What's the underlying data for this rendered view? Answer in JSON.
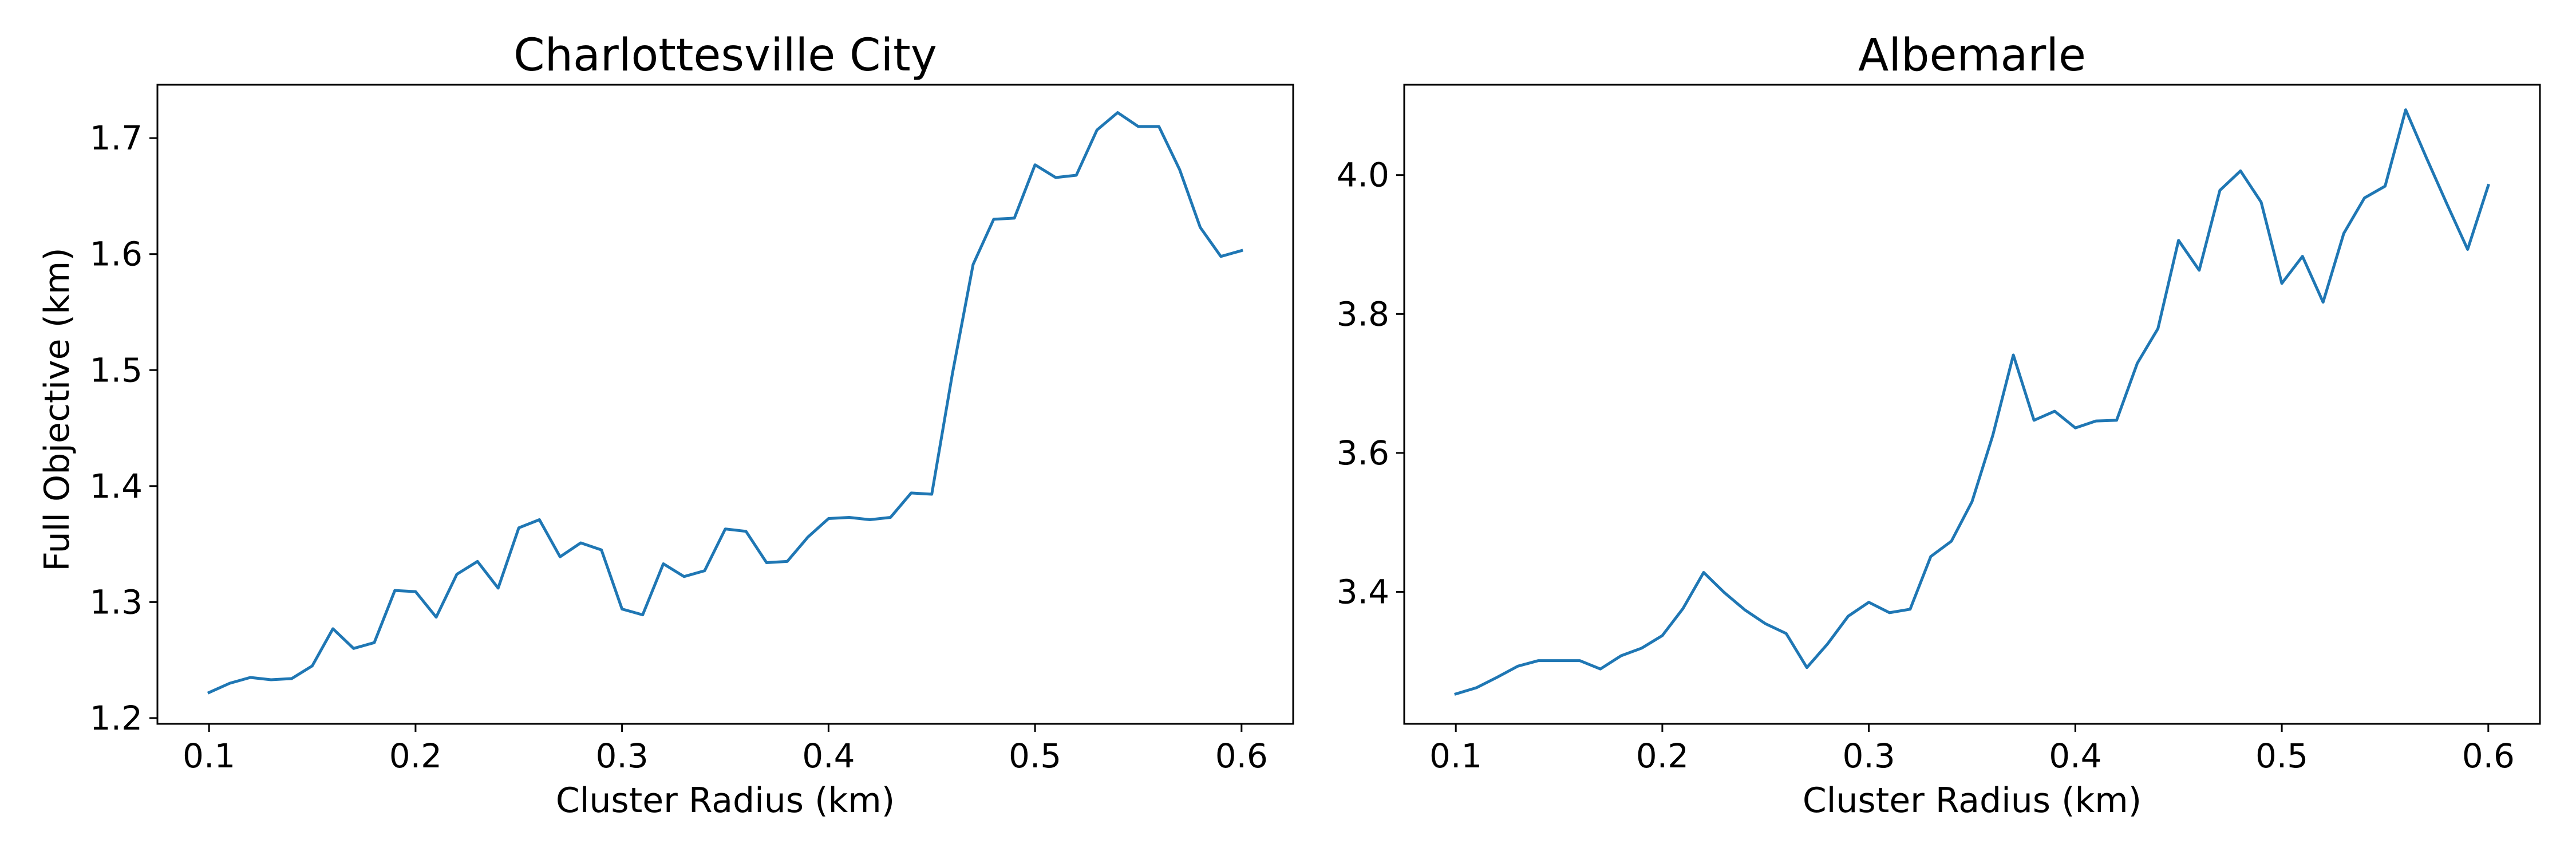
{
  "colors": {
    "line": "#1f77b4",
    "axis": "#000000",
    "background": "#ffffff"
  },
  "chart_data": [
    {
      "type": "line",
      "title": "Charlottesville City",
      "xlabel": "Cluster Radius (km)",
      "ylabel": "Full Objective (km)",
      "xlim": [
        0.075,
        0.625
      ],
      "ylim": [
        1.195,
        1.746
      ],
      "xticks": [
        0.1,
        0.2,
        0.3,
        0.4,
        0.5,
        0.6
      ],
      "xtick_labels": [
        "0.1",
        "0.2",
        "0.3",
        "0.4",
        "0.5",
        "0.6"
      ],
      "yticks": [
        1.2,
        1.3,
        1.4,
        1.5,
        1.6,
        1.7
      ],
      "ytick_labels": [
        "1.2",
        "1.3",
        "1.4",
        "1.5",
        "1.6",
        "1.7"
      ],
      "grid": false,
      "x": [
        0.1,
        0.11,
        0.12,
        0.13,
        0.14,
        0.15,
        0.16,
        0.17,
        0.18,
        0.19,
        0.2,
        0.21,
        0.22,
        0.23,
        0.24,
        0.25,
        0.26,
        0.27,
        0.28,
        0.29,
        0.3,
        0.31,
        0.32,
        0.33,
        0.34,
        0.35,
        0.36,
        0.37,
        0.38,
        0.39,
        0.4,
        0.41,
        0.42,
        0.43,
        0.44,
        0.45,
        0.46,
        0.47,
        0.48,
        0.49,
        0.5,
        0.51,
        0.52,
        0.53,
        0.54,
        0.55,
        0.56,
        0.57,
        0.58,
        0.59,
        0.6
      ],
      "y": [
        1.222,
        1.23,
        1.235,
        1.233,
        1.234,
        1.245,
        1.277,
        1.26,
        1.265,
        1.31,
        1.309,
        1.287,
        1.324,
        1.335,
        1.312,
        1.364,
        1.371,
        1.339,
        1.351,
        1.345,
        1.294,
        1.289,
        1.333,
        1.322,
        1.327,
        1.363,
        1.361,
        1.334,
        1.335,
        1.356,
        1.372,
        1.373,
        1.371,
        1.373,
        1.394,
        1.393,
        1.497,
        1.591,
        1.63,
        1.631,
        1.677,
        1.666,
        1.668,
        1.707,
        1.722,
        1.71,
        1.71,
        1.673,
        1.623,
        1.598,
        1.603
      ]
    },
    {
      "type": "line",
      "title": "Albemarle",
      "xlabel": "Cluster Radius (km)",
      "ylabel": "",
      "xlim": [
        0.075,
        0.625
      ],
      "ylim": [
        3.21,
        4.13
      ],
      "xticks": [
        0.1,
        0.2,
        0.3,
        0.4,
        0.5,
        0.6
      ],
      "xtick_labels": [
        "0.1",
        "0.2",
        "0.3",
        "0.4",
        "0.5",
        "0.6"
      ],
      "yticks": [
        3.4,
        3.6,
        3.8,
        4.0
      ],
      "ytick_labels": [
        "3.4",
        "3.6",
        "3.8",
        "4.0"
      ],
      "grid": false,
      "x": [
        0.1,
        0.11,
        0.12,
        0.13,
        0.14,
        0.15,
        0.16,
        0.17,
        0.18,
        0.19,
        0.2,
        0.21,
        0.22,
        0.23,
        0.24,
        0.25,
        0.26,
        0.27,
        0.28,
        0.29,
        0.3,
        0.31,
        0.32,
        0.33,
        0.34,
        0.35,
        0.36,
        0.37,
        0.38,
        0.39,
        0.4,
        0.41,
        0.42,
        0.43,
        0.44,
        0.45,
        0.46,
        0.47,
        0.48,
        0.49,
        0.5,
        0.51,
        0.52,
        0.53,
        0.54,
        0.55,
        0.56,
        0.57,
        0.58,
        0.59,
        0.6
      ],
      "y": [
        3.253,
        3.262,
        3.277,
        3.293,
        3.301,
        3.301,
        3.301,
        3.289,
        3.308,
        3.319,
        3.337,
        3.376,
        3.428,
        3.399,
        3.374,
        3.354,
        3.34,
        3.291,
        3.325,
        3.365,
        3.385,
        3.37,
        3.375,
        3.451,
        3.473,
        3.53,
        3.625,
        3.741,
        3.647,
        3.66,
        3.636,
        3.646,
        3.647,
        3.729,
        3.779,
        3.906,
        3.863,
        3.978,
        4.006,
        3.961,
        3.844,
        3.883,
        3.817,
        3.916,
        3.967,
        3.984,
        4.094,
        4.025,
        3.958,
        3.893,
        3.985
      ]
    }
  ]
}
